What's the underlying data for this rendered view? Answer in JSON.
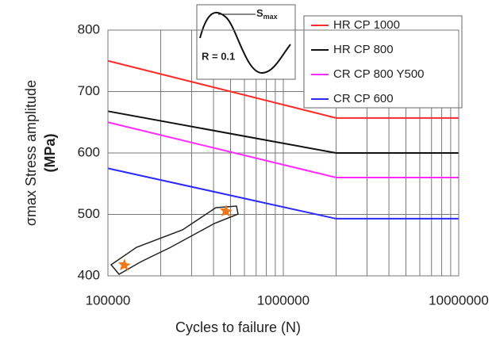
{
  "chart_data": {
    "type": "line",
    "x": [
      100000,
      2000000,
      10000000
    ],
    "series": [
      {
        "name": "HR CP 1000",
        "color": "#ff2a2a",
        "values": [
          750,
          657,
          657
        ]
      },
      {
        "name": "HR CP 800",
        "color": "#111111",
        "values": [
          668,
          600,
          600
        ]
      },
      {
        "name": "CR CP 800 Y500",
        "color": "#ff2aff",
        "values": [
          650,
          560,
          560
        ]
      },
      {
        "name": "CR CP 600",
        "color": "#2a2aff",
        "values": [
          575,
          493,
          493
        ]
      }
    ],
    "xlim": [
      100000,
      10000000
    ],
    "xticks": [
      100000,
      1000000,
      10000000
    ],
    "x_minor_ticks": [
      200000,
      300000,
      400000,
      500000,
      600000,
      700000,
      800000,
      900000,
      2000000,
      3000000,
      4000000,
      5000000,
      6000000,
      7000000,
      8000000,
      9000000
    ],
    "ylim": [
      400,
      800
    ],
    "yticks": [
      400,
      500,
      600,
      700,
      800
    ],
    "log_x": true,
    "grid": true,
    "xlabel": "Cycles to failure (N)",
    "ylabel": [
      "σmax Stress amplitude",
      "(MPa)"
    ],
    "inset": {
      "peak_label": "S",
      "peak_label_sub": "max",
      "ratio_label": "R = 0.1"
    }
  }
}
